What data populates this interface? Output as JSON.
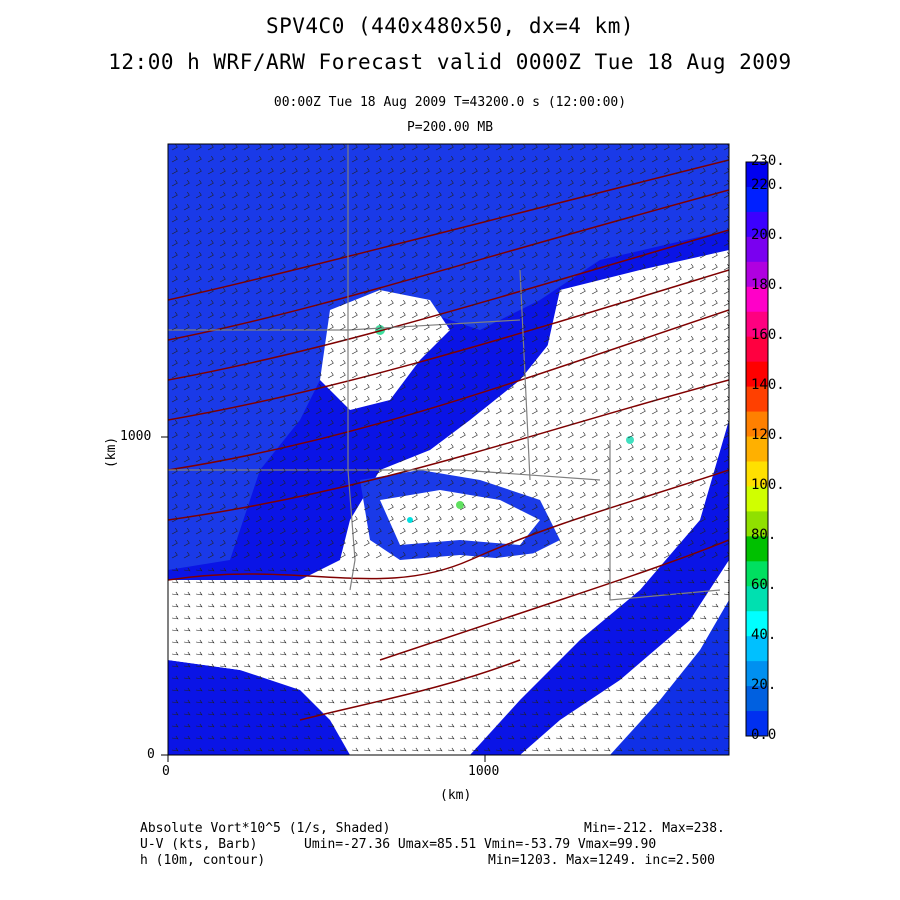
{
  "titles": {
    "line1": "SPV4C0 (440x480x50, dx=4 km)",
    "line2": "12:00 h WRF/ARW Forecast valid 0000Z Tue 18 Aug 2009",
    "sub1": "00:00Z Tue 18 Aug 2009    T=43200.0 s (12:00:00)",
    "sub2": "P=200.00 MB"
  },
  "axes": {
    "x_unit": "(km)",
    "y_unit": "(km)",
    "x_ticks": [
      "0",
      "1000"
    ],
    "y_ticks": [
      "0",
      "1000"
    ]
  },
  "colorbar": {
    "labels": [
      "230.",
      "220.",
      "200.",
      "180.",
      "160.",
      "140.",
      "120.",
      "100.",
      "80.",
      "60.",
      "40.",
      "20.",
      "0.0"
    ],
    "colors": [
      "#0000f0",
      "#0020ff",
      "#3c00ff",
      "#7a00f0",
      "#b000e0",
      "#ff00c8",
      "#ff0080",
      "#ff0040",
      "#ff0000",
      "#ff4000",
      "#ff8000",
      "#ffb000",
      "#ffe000",
      "#d0ff00",
      "#90e000",
      "#00c000",
      "#00e060",
      "#00e0b0",
      "#00ffff",
      "#00c0ff",
      "#0090f0",
      "#0060e0",
      "#0030f0"
    ]
  },
  "footer": {
    "l1": "Absolute Vort*10^5 (1/s, Shaded)",
    "r1": "Min=-212. Max=238.",
    "l2": "U-V (kts, Barb)",
    "r2": "Umin=-27.36 Umax=85.51 Vmin=-53.79 Vmax=99.90",
    "l3": "h (10m, contour)",
    "r3": "Min=1203. Max=1249. inc=2.500"
  }
}
